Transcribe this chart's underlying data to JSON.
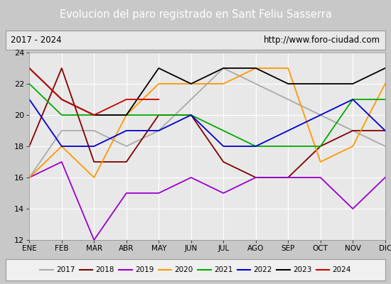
{
  "title": "Evolucion del paro registrado en Sant Feliu Sasserra",
  "subtitle_left": "2017 - 2024",
  "subtitle_right": "http://www.foro-ciudad.com",
  "ylim": [
    12,
    24
  ],
  "months": [
    "ENE",
    "FEB",
    "MAR",
    "ABR",
    "MAY",
    "JUN",
    "JUL",
    "AGO",
    "SEP",
    "OCT",
    "NOV",
    "DIC"
  ],
  "series": {
    "2017": {
      "color": "#aaaaaa",
      "data": [
        16,
        19,
        19,
        18,
        19,
        21,
        23,
        22,
        21,
        20,
        19,
        18
      ]
    },
    "2018": {
      "color": "#800000",
      "data": [
        18,
        23,
        17,
        17,
        20,
        20,
        17,
        16,
        16,
        18,
        19,
        19
      ]
    },
    "2019": {
      "color": "#9900cc",
      "data": [
        16,
        17,
        12,
        15,
        15,
        16,
        15,
        16,
        16,
        16,
        14,
        16
      ]
    },
    "2020": {
      "color": "#ff9900",
      "data": [
        16,
        18,
        16,
        20,
        22,
        22,
        22,
        23,
        23,
        17,
        18,
        22
      ]
    },
    "2021": {
      "color": "#00aa00",
      "data": [
        22,
        20,
        20,
        20,
        20,
        20,
        19,
        18,
        18,
        18,
        21,
        21
      ]
    },
    "2022": {
      "color": "#0000cc",
      "data": [
        21,
        18,
        18,
        19,
        19,
        20,
        18,
        18,
        19,
        20,
        21,
        19
      ]
    },
    "2023": {
      "color": "#000000",
      "data": [
        23,
        21,
        20,
        20,
        23,
        22,
        23,
        23,
        22,
        22,
        22,
        23
      ]
    },
    "2024": {
      "color": "#cc0000",
      "data": [
        23,
        21,
        20,
        21,
        21,
        null,
        null,
        null,
        null,
        null,
        null,
        null
      ]
    }
  },
  "title_bg": "#4472c4",
  "title_color": "#ffffff",
  "plot_bg": "#e8e8e8",
  "grid_color": "#ffffff",
  "outer_bg": "#c8c8c8",
  "legend_bg": "#f0f0f0",
  "border_color": "#999999"
}
